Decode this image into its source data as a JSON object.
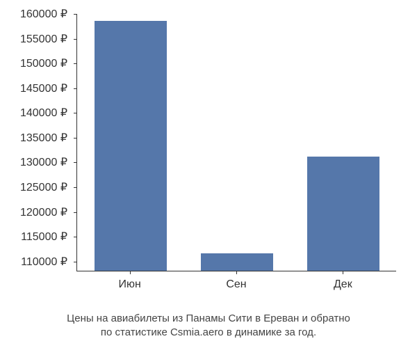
{
  "chart": {
    "type": "bar",
    "categories": [
      "Июн",
      "Сен",
      "Дек"
    ],
    "values": [
      158500,
      111500,
      131000
    ],
    "bar_colors": [
      "#5577aa",
      "#5577aa",
      "#5577aa"
    ],
    "ylim": [
      108000,
      160000
    ],
    "ytick_labels": [
      "110000 ₽",
      "115000 ₽",
      "120000 ₽",
      "125000 ₽",
      "130000 ₽",
      "135000 ₽",
      "140000 ₽",
      "145000 ₽",
      "150000 ₽",
      "155000 ₽",
      "160000 ₽"
    ],
    "ytick_values": [
      110000,
      115000,
      120000,
      125000,
      130000,
      135000,
      140000,
      145000,
      150000,
      155000,
      160000
    ],
    "ytick_fontsize": 16,
    "xtick_fontsize": 16,
    "bar_width": 0.68,
    "background_color": "#ffffff",
    "axis_color": "#333333"
  },
  "caption": {
    "line1": "Цены на авиабилеты из Панамы Сити в Ереван и обратно",
    "line2": "по статистике Csmia.aero в динамике за год.",
    "fontsize": 15,
    "color": "#444444"
  }
}
